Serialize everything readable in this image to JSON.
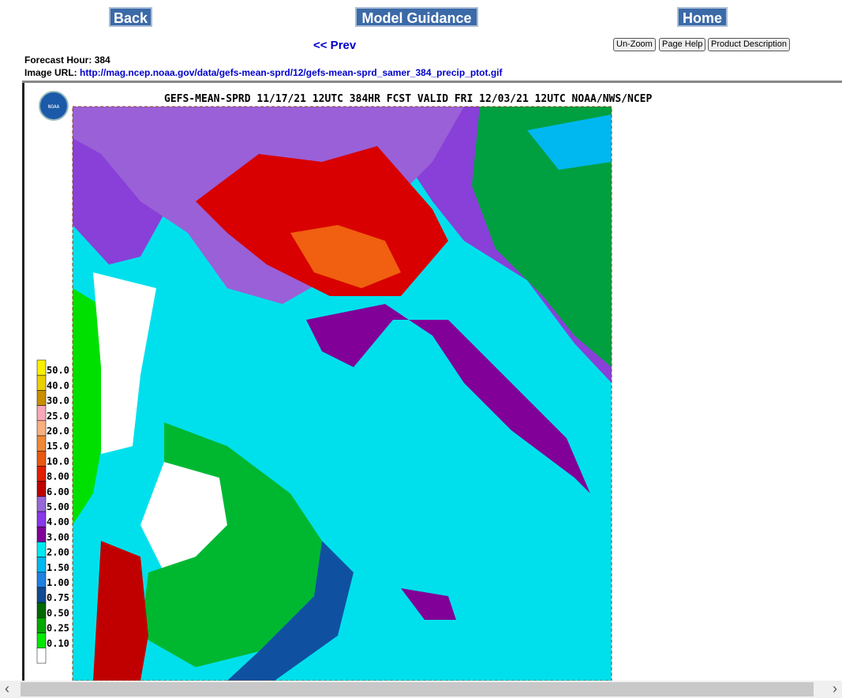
{
  "nav": {
    "back": "Back",
    "model_guidance": "Model Guidance",
    "home": "Home",
    "prev": "<< Prev"
  },
  "tools": {
    "unzoom": "Un-Zoom",
    "page_help": "Page Help",
    "product_description": "Product Description"
  },
  "info": {
    "forecast_hour_label": "Forecast Hour:",
    "forecast_hour": "384",
    "image_url_label": "Image URL:",
    "image_url": "http://mag.ncep.noaa.gov/data/gefs-mean-sprd/12/gefs-mean-sprd_samer_384_precip_ptot.gif"
  },
  "map": {
    "title": "GEFS-MEAN-SPRD 11/17/21 12UTC 384HR FCST VALID FRI 12/03/21 12UTC NOAA/NWS/NCEP",
    "logo": "NOAA",
    "legend": [
      {
        "label": "50.0",
        "color": "#f8f000"
      },
      {
        "label": "40.0",
        "color": "#e8d000"
      },
      {
        "label": "30.0",
        "color": "#c89000"
      },
      {
        "label": "25.0",
        "color": "#f8a8b8"
      },
      {
        "label": "20.0",
        "color": "#f8b080"
      },
      {
        "label": "15.0",
        "color": "#f08838"
      },
      {
        "label": "10.0",
        "color": "#e85810"
      },
      {
        "label": "8.00",
        "color": "#e02000"
      },
      {
        "label": "6.00",
        "color": "#c00000"
      },
      {
        "label": "5.00",
        "color": "#9868d8"
      },
      {
        "label": "4.00",
        "color": "#8838e8"
      },
      {
        "label": "3.00",
        "color": "#800098"
      },
      {
        "label": "2.00",
        "color": "#00e8f0"
      },
      {
        "label": "1.50",
        "color": "#00b8f0"
      },
      {
        "label": "1.00",
        "color": "#2080e0"
      },
      {
        "label": "0.75",
        "color": "#104a90"
      },
      {
        "label": "0.50",
        "color": "#006800"
      },
      {
        "label": "0.25",
        "color": "#00a800"
      },
      {
        "label": "0.10",
        "color": "#00e800"
      }
    ]
  }
}
